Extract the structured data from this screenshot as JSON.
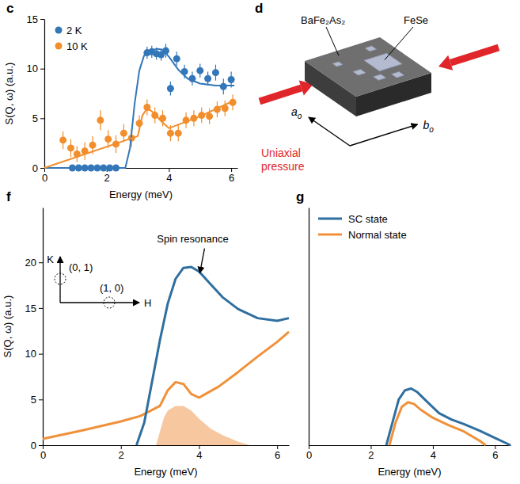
{
  "chart_data": [
    {
      "panel": "c",
      "type": "scatter",
      "x_label": "Energy (meV)",
      "y_label": "S(Q, ω) (a.u.)",
      "xlim": [
        0,
        6.2
      ],
      "xticks": [
        0,
        2,
        4,
        6
      ],
      "ylim": [
        0,
        15
      ],
      "yticks": [
        0,
        5,
        10,
        15
      ],
      "legend": "upper left",
      "series": [
        {
          "name": "2 K",
          "type": "scatter",
          "marker": "circle",
          "color": "#3477b8",
          "x": [
            0.9,
            1.1,
            1.3,
            1.5,
            1.7,
            1.9,
            2.1,
            2.3,
            3.3,
            3.45,
            3.6,
            3.75,
            3.9,
            4.05,
            4.25,
            4.5,
            4.75,
            5.0,
            5.25,
            5.5,
            5.75,
            6.0
          ],
          "values": [
            0,
            0,
            0,
            0,
            0,
            0,
            0,
            0,
            11.6,
            11.7,
            11.5,
            11.4,
            11.8,
            8.0,
            11.0,
            9.7,
            9.0,
            9.8,
            9.0,
            9.6,
            8.2,
            8.9
          ],
          "errors": [
            0.3,
            0.3,
            0.3,
            0.3,
            0.3,
            0.3,
            0.3,
            0.3,
            0.6,
            0.6,
            0.6,
            0.6,
            0.7,
            0.7,
            0.7,
            0.7,
            0.7,
            0.7,
            0.7,
            0.8,
            0.8,
            0.8
          ]
        },
        {
          "name": "10 K",
          "type": "scatter",
          "marker": "circle",
          "color": "#f28e2b",
          "x": [
            0.6,
            0.85,
            1.05,
            1.3,
            1.55,
            1.8,
            2.05,
            2.3,
            2.55,
            2.8,
            3.05,
            3.3,
            3.55,
            3.8,
            4.05,
            4.3,
            4.55,
            4.8,
            5.05,
            5.3,
            5.55,
            5.8,
            6.05
          ],
          "values": [
            2.8,
            2.0,
            1.4,
            1.7,
            2.3,
            4.8,
            2.9,
            2.4,
            3.5,
            3.0,
            4.5,
            6.1,
            5.3,
            5.0,
            3.5,
            3.5,
            4.8,
            5.0,
            5.3,
            5.2,
            5.9,
            6.0,
            6.6
          ],
          "errors": [
            0.9,
            0.9,
            0.8,
            0.9,
            0.9,
            1.0,
            0.9,
            0.9,
            0.9,
            0.9,
            0.8,
            0.8,
            0.8,
            0.8,
            0.8,
            0.8,
            0.8,
            0.8,
            0.8,
            0.8,
            0.8,
            0.8,
            0.8
          ]
        },
        {
          "type": "line",
          "line_style": "solid",
          "color": "#3477b8",
          "x": [
            0,
            2.6,
            2.75,
            2.9,
            3.05,
            3.2,
            3.4,
            3.6,
            3.8,
            4.0,
            4.3,
            4.6,
            5.0,
            5.5,
            6.1
          ],
          "values": [
            0,
            0,
            2.0,
            6.5,
            9.8,
            11.3,
            11.8,
            12.0,
            11.9,
            11.2,
            9.9,
            9.0,
            8.5,
            8.3,
            8.3
          ]
        },
        {
          "type": "line",
          "line_style": "solid",
          "color": "#f28e2b",
          "x": [
            0,
            3.0,
            3.15,
            3.3,
            3.5,
            3.75,
            4.0,
            5.0,
            6.1
          ],
          "values": [
            0,
            3.2,
            5.3,
            6.0,
            5.6,
            4.7,
            4.0,
            5.2,
            6.8
          ]
        }
      ]
    },
    {
      "panel": "f",
      "type": "line",
      "x_label": "Energy (meV)",
      "y_label": "S(Q, ω) (a.u.)",
      "xlim": [
        0,
        6.3
      ],
      "xticks": [
        0,
        2,
        4,
        6
      ],
      "ylim": [
        0,
        26
      ],
      "yticks": [
        0,
        5,
        10,
        15,
        20
      ],
      "annotations": [
        {
          "text": "Spin resonance",
          "x": 4.0,
          "y": 18.4
        }
      ],
      "inset": {
        "vertical": "K",
        "horizontal": "H",
        "points": [
          "(0, 1)",
          "(1, 0)"
        ]
      },
      "series": [
        {
          "type": "area",
          "color": "#f7c7a0",
          "x": [
            2.9,
            3.0,
            3.1,
            3.2,
            3.4,
            3.6,
            3.8,
            4.0,
            4.3,
            4.6,
            5.0,
            5.3
          ],
          "values": [
            0,
            1.5,
            3.0,
            3.8,
            4.3,
            4.3,
            3.8,
            2.9,
            1.8,
            1.1,
            0.4,
            0
          ]
        },
        {
          "type": "line",
          "line_style": "solid",
          "color": "#f0913a",
          "x": [
            0,
            1,
            2,
            2.5,
            3.0,
            3.2,
            3.4,
            3.6,
            3.8,
            4.0,
            4.5,
            5.0,
            5.5,
            6.0,
            6.3
          ],
          "values": [
            0.7,
            1.6,
            2.6,
            3.2,
            4.3,
            6.0,
            6.9,
            6.7,
            5.6,
            5.2,
            6.4,
            8.0,
            9.7,
            11.3,
            12.4
          ]
        },
        {
          "type": "line",
          "line_style": "solid",
          "color": "#2f6f9f",
          "x": [
            2.4,
            2.6,
            2.8,
            3.0,
            3.2,
            3.4,
            3.6,
            3.8,
            4.0,
            4.3,
            4.6,
            5.0,
            5.5,
            6.0,
            6.3
          ],
          "values": [
            0,
            2.5,
            7.0,
            11.5,
            15.5,
            18.2,
            19.4,
            19.5,
            19.0,
            17.6,
            16.2,
            14.9,
            13.9,
            13.6,
            13.9
          ]
        }
      ]
    },
    {
      "panel": "g",
      "type": "line",
      "x_label": "Energy (meV)",
      "xlim": [
        0,
        6.5
      ],
      "xticks": [
        0,
        2,
        4,
        6
      ],
      "ylim": [
        0,
        26
      ],
      "tick_labels": "x",
      "legend": "upper left",
      "series": [
        {
          "name": "SC state",
          "type": "line",
          "line_style": "solid",
          "color": "#2f6f9f",
          "x": [
            2.5,
            2.7,
            2.9,
            3.1,
            3.3,
            3.5,
            3.8,
            4.2,
            4.6,
            5.0,
            5.5,
            6.0,
            6.5
          ],
          "values": [
            0,
            2.5,
            5.0,
            6.0,
            6.2,
            5.8,
            4.8,
            3.5,
            2.8,
            2.3,
            1.6,
            0.8,
            0
          ]
        },
        {
          "name": "Normal state",
          "type": "line",
          "line_style": "solid",
          "color": "#f0913a",
          "x": [
            2.6,
            2.8,
            3.0,
            3.2,
            3.4,
            3.6,
            4.0,
            4.5,
            5.0,
            5.5,
            5.7
          ],
          "values": [
            0,
            2.5,
            4.2,
            4.7,
            4.5,
            3.9,
            3.0,
            2.2,
            1.5,
            0.5,
            0
          ]
        }
      ]
    }
  ],
  "diagram": {
    "panel": "d",
    "substrate": "BaFe₂As₂",
    "flake": "FeSe",
    "pressure": "Uniaxial pressure",
    "axes": [
      {
        "text": "a",
        "sub": "o"
      },
      {
        "text": "b",
        "sub": "o"
      }
    ]
  }
}
